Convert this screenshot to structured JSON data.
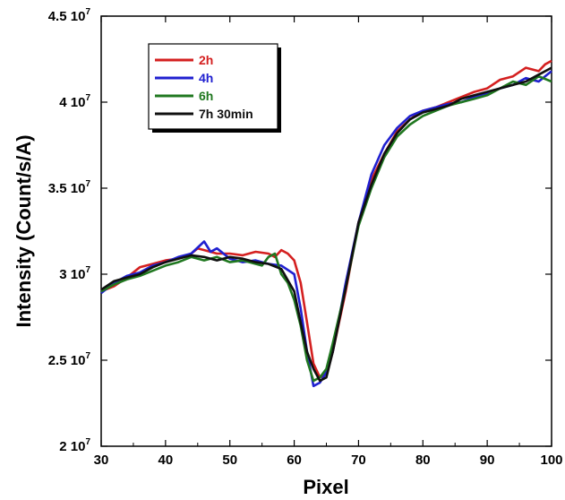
{
  "chart_data": {
    "type": "line",
    "xlabel": "Pixel",
    "ylabel": "Intensity (Count/s/A)",
    "xlim": [
      30,
      100
    ],
    "ylim": [
      20000000.0,
      45000000.0
    ],
    "xticks": [
      {
        "value": 30,
        "label": "30"
      },
      {
        "value": 40,
        "label": "40"
      },
      {
        "value": 50,
        "label": "50"
      },
      {
        "value": 60,
        "label": "60"
      },
      {
        "value": 70,
        "label": "70"
      },
      {
        "value": 80,
        "label": "80"
      },
      {
        "value": 90,
        "label": "90"
      },
      {
        "value": 100,
        "label": "100"
      }
    ],
    "yticks": [
      {
        "value": 20000000.0,
        "mantissa": "2 10",
        "exp": "7"
      },
      {
        "value": 25000000.0,
        "mantissa": "2.5 10",
        "exp": "7"
      },
      {
        "value": 30000000.0,
        "mantissa": "3 10",
        "exp": "7"
      },
      {
        "value": 35000000.0,
        "mantissa": "3.5 10",
        "exp": "7"
      },
      {
        "value": 40000000.0,
        "mantissa": "4 10",
        "exp": "7"
      },
      {
        "value": 45000000.0,
        "mantissa": "4.5 10",
        "exp": "7"
      }
    ],
    "grid": false,
    "legend_position": "top-left",
    "series": [
      {
        "name": "2h",
        "color": "#d42020",
        "x": [
          30,
          32,
          34,
          36,
          38,
          40,
          42,
          44,
          45,
          46,
          48,
          50,
          52,
          54,
          56,
          57,
          58,
          59,
          60,
          61,
          62,
          63,
          64,
          65,
          66,
          68,
          70,
          72,
          74,
          76,
          78,
          80,
          82,
          84,
          86,
          88,
          90,
          92,
          94,
          96,
          98,
          99,
          100
        ],
        "y": [
          29000000.0,
          29300000.0,
          29800000.0,
          30400000.0,
          30600000.0,
          30800000.0,
          30900000.0,
          31200000.0,
          31500000.0,
          31400000.0,
          31200000.0,
          31200000.0,
          31100000.0,
          31300000.0,
          31200000.0,
          31000000.0,
          31400000.0,
          31200000.0,
          30800000.0,
          29500000.0,
          27200000.0,
          24800000.0,
          24000000.0,
          24200000.0,
          25500000.0,
          29000000.0,
          33000000.0,
          35500000.0,
          37000000.0,
          38300000.0,
          39000000.0,
          39500000.0,
          39700000.0,
          40000000.0,
          40300000.0,
          40600000.0,
          40800000.0,
          41300000.0,
          41500000.0,
          42000000.0,
          41800000.0,
          42200000.0,
          42400000.0
        ]
      },
      {
        "name": "4h",
        "color": "#2020d0",
        "x": [
          30,
          32,
          34,
          36,
          38,
          40,
          42,
          44,
          46,
          47,
          48,
          50,
          52,
          54,
          56,
          58,
          60,
          61,
          62,
          63,
          64,
          65,
          66,
          68,
          70,
          72,
          74,
          76,
          78,
          80,
          82,
          84,
          86,
          88,
          90,
          92,
          94,
          96,
          98,
          100
        ],
        "y": [
          28900000.0,
          29500000.0,
          29900000.0,
          30100000.0,
          30500000.0,
          30700000.0,
          31000000.0,
          31200000.0,
          31900000.0,
          31300000.0,
          31500000.0,
          30900000.0,
          30700000.0,
          30800000.0,
          30600000.0,
          30500000.0,
          30000000.0,
          28000000.0,
          25500000.0,
          23500000.0,
          23700000.0,
          24300000.0,
          25500000.0,
          29500000.0,
          33000000.0,
          35800000.0,
          37500000.0,
          38500000.0,
          39200000.0,
          39500000.0,
          39700000.0,
          39900000.0,
          40000000.0,
          40300000.0,
          40500000.0,
          40800000.0,
          41000000.0,
          41400000.0,
          41200000.0,
          41800000.0
        ]
      },
      {
        "name": "6h",
        "color": "#207820",
        "x": [
          30,
          32,
          34,
          36,
          38,
          40,
          42,
          44,
          46,
          48,
          50,
          52,
          54,
          55,
          56,
          57,
          58,
          59,
          60,
          61,
          62,
          63,
          64,
          65,
          66,
          68,
          70,
          72,
          74,
          76,
          78,
          80,
          82,
          84,
          86,
          88,
          90,
          92,
          94,
          96,
          98,
          100
        ],
        "y": [
          29000000.0,
          29400000.0,
          29700000.0,
          29900000.0,
          30200000.0,
          30500000.0,
          30700000.0,
          31000000.0,
          30800000.0,
          31000000.0,
          30700000.0,
          30800000.0,
          30600000.0,
          30500000.0,
          31000000.0,
          31200000.0,
          30000000.0,
          29500000.0,
          28500000.0,
          27000000.0,
          25000000.0,
          23800000.0,
          24000000.0,
          24500000.0,
          26000000.0,
          29200000.0,
          32800000.0,
          35000000.0,
          36800000.0,
          38000000.0,
          38700000.0,
          39200000.0,
          39500000.0,
          39800000.0,
          40000000.0,
          40200000.0,
          40400000.0,
          40800000.0,
          41200000.0,
          41000000.0,
          41500000.0,
          41200000.0
        ]
      },
      {
        "name": "7h 30min",
        "color": "#101010",
        "x": [
          30,
          32,
          34,
          36,
          38,
          40,
          42,
          44,
          46,
          48,
          50,
          52,
          54,
          56,
          58,
          60,
          61,
          62,
          63,
          64,
          65,
          66,
          68,
          70,
          72,
          74,
          76,
          78,
          80,
          82,
          84,
          86,
          88,
          90,
          92,
          94,
          96,
          98,
          100
        ],
        "y": [
          29100000.0,
          29600000.0,
          29800000.0,
          30000000.0,
          30400000.0,
          30700000.0,
          30900000.0,
          31100000.0,
          31000000.0,
          30800000.0,
          31000000.0,
          30900000.0,
          30700000.0,
          30600000.0,
          30300000.0,
          29000000.0,
          27200000.0,
          25500000.0,
          24500000.0,
          23800000.0,
          24000000.0,
          25500000.0,
          29200000.0,
          33000000.0,
          35200000.0,
          37000000.0,
          38200000.0,
          39000000.0,
          39400000.0,
          39600000.0,
          39800000.0,
          40200000.0,
          40400000.0,
          40600000.0,
          40800000.0,
          41000000.0,
          41200000.0,
          41600000.0,
          42000000.0
        ]
      }
    ]
  }
}
